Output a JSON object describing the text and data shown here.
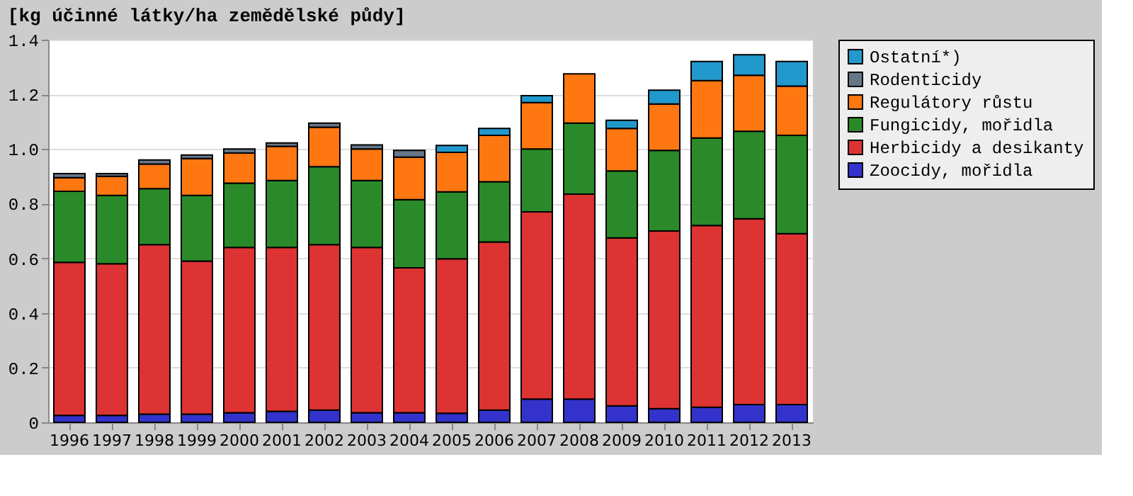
{
  "chart_data": {
    "type": "bar",
    "stacked": true,
    "title": "[kg účinné látky/ha zemědělské půdy]",
    "categories": [
      "1996",
      "1997",
      "1998",
      "1999",
      "2000",
      "2001",
      "2002",
      "2003",
      "2004",
      "2005",
      "2006",
      "2007",
      "2008",
      "2009",
      "2010",
      "2011",
      "2012",
      "2013"
    ],
    "series": [
      {
        "name": "Zoocidy, mořidla",
        "color": "#3333cc",
        "values": [
          0.025,
          0.025,
          0.03,
          0.03,
          0.035,
          0.04,
          0.045,
          0.035,
          0.035,
          0.033,
          0.045,
          0.085,
          0.085,
          0.06,
          0.05,
          0.055,
          0.065,
          0.065
        ]
      },
      {
        "name": "Herbicidy a desikanty",
        "color": "#dd3333",
        "values": [
          0.56,
          0.555,
          0.62,
          0.56,
          0.605,
          0.6,
          0.605,
          0.605,
          0.53,
          0.565,
          0.615,
          0.685,
          0.75,
          0.615,
          0.65,
          0.665,
          0.68,
          0.625
        ]
      },
      {
        "name": "Fungicidy, mořidla",
        "color": "#2a8a2a",
        "values": [
          0.26,
          0.25,
          0.205,
          0.24,
          0.235,
          0.245,
          0.285,
          0.245,
          0.25,
          0.245,
          0.22,
          0.23,
          0.26,
          0.245,
          0.295,
          0.32,
          0.32,
          0.36
        ]
      },
      {
        "name": "Regulátory růstu",
        "color": "#ff7711",
        "values": [
          0.05,
          0.07,
          0.09,
          0.135,
          0.11,
          0.125,
          0.145,
          0.115,
          0.155,
          0.145,
          0.17,
          0.17,
          0.18,
          0.155,
          0.17,
          0.21,
          0.205,
          0.18
        ]
      },
      {
        "name": "Rodenticidy",
        "color": "#667788",
        "values": [
          0.015,
          0.01,
          0.015,
          0.013,
          0.015,
          0.012,
          0.015,
          0.015,
          0.025,
          null,
          null,
          null,
          null,
          null,
          null,
          null,
          null,
          null
        ]
      },
      {
        "name": "Ostatní*)",
        "color": "#2299cc",
        "values": [
          null,
          null,
          null,
          null,
          null,
          null,
          null,
          null,
          null,
          0.025,
          0.025,
          0.025,
          null,
          0.03,
          0.05,
          0.07,
          0.075,
          0.09
        ]
      }
    ],
    "ylim": [
      0,
      1.4
    ],
    "yticks": [
      0,
      {
        "value": 0.2,
        "label": "0.2"
      },
      {
        "value": 0.4,
        "label": "0.4"
      },
      {
        "value": 0.6,
        "label": "0.6"
      },
      {
        "value": 0.8,
        "label": "0.8"
      },
      {
        "value": 1.0,
        "label": "1.0"
      },
      {
        "value": 1.2,
        "label": "1.2"
      },
      {
        "value": 1.4,
        "label": "1.4"
      }
    ],
    "grid": "y",
    "legend": "right"
  }
}
